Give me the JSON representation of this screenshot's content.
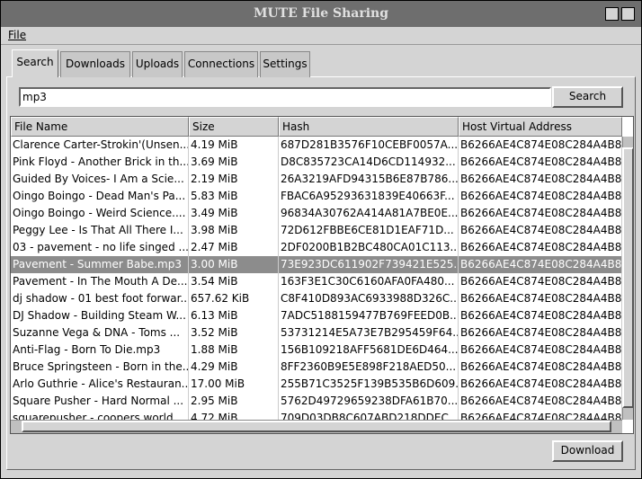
{
  "window": {
    "title": "MUTE File Sharing"
  },
  "menu": [
    "File"
  ],
  "tabs": [
    "Search",
    "Downloads",
    "Uploads",
    "Connections",
    "Settings"
  ],
  "active_tab": 0,
  "search": {
    "query": "mp3",
    "button": "Search"
  },
  "table": {
    "columns": [
      "File Name",
      "Size",
      "Hash",
      "Host Virtual Address"
    ],
    "rows": [
      [
        "Clarence Carter-Strokin'(Unsen...",
        "4.19 MiB",
        "687D281B3576F10CEBF0057A...",
        "B6266AE4C874E08C284A4B8"
      ],
      [
        "Pink Floyd - Another Brick in th...",
        "3.69 MiB",
        "D8C835723CA14D6CD114932...",
        "B6266AE4C874E08C284A4B8"
      ],
      [
        "Guided By Voices- I Am a Scie...",
        "2.19 MiB",
        "26A3219AFD94315B6E87B786...",
        "B6266AE4C874E08C284A4B8"
      ],
      [
        "Oingo Boingo - Dead Man's Pa...",
        "5.83 MiB",
        "FBAC6A95293631839E40663F...",
        "B6266AE4C874E08C284A4B8"
      ],
      [
        "Oingo Boingo - Weird Science....",
        "3.49 MiB",
        "96834A30762A414A81A7BE0E...",
        "B6266AE4C874E08C284A4B8"
      ],
      [
        "Peggy Lee - Is That All There I...",
        "3.98 MiB",
        "72D612FBBE6CE81D1EAF71D...",
        "B6266AE4C874E08C284A4B8"
      ],
      [
        "03 - pavement - no life singed ...",
        "2.47 MiB",
        "2DF0200B1B2BC480CA01C113...",
        "B6266AE4C874E08C284A4B8"
      ],
      [
        "Pavement - Summer Babe.mp3",
        "3.00 MiB",
        "73E923DC611902F739421E525...",
        "B6266AE4C874E08C284A4B8"
      ],
      [
        "Pavement - In The Mouth A De...",
        "3.54 MiB",
        "163F3E1C30C6160AFA0FA480...",
        "B6266AE4C874E08C284A4B8"
      ],
      [
        "dj shadow - 01 best foot forwar...",
        "657.62 KiB",
        "C8F410D893AC6933988D326C...",
        "B6266AE4C874E08C284A4B8"
      ],
      [
        "DJ Shadow - Building Steam W...",
        "6.13 MiB",
        "7ADC5188159477B769FEED0B...",
        "B6266AE4C874E08C284A4B8"
      ],
      [
        "Suzanne Vega & DNA - Toms ...",
        "3.52 MiB",
        "53731214E5A73E7B295459F64...",
        "B6266AE4C874E08C284A4B8"
      ],
      [
        "Anti-Flag - Born To Die.mp3",
        "1.88 MiB",
        "156B109218AFF5681DE6D464...",
        "B6266AE4C874E08C284A4B8"
      ],
      [
        "Bruce Springsteen - Born in the...",
        "4.29 MiB",
        "8FF2360B9E5E898F218AED50...",
        "B6266AE4C874E08C284A4B8"
      ],
      [
        "Arlo Guthrie - Alice's Restauran...",
        "17.00 MiB",
        "255B71C3525F139B535B6D609...",
        "B6266AE4C874E08C284A4B8"
      ],
      [
        "Square Pusher - Hard Normal ...",
        "2.95 MiB",
        "5762D49729659238DFA61B70...",
        "B6266AE4C874E08C284A4B8"
      ],
      [
        "squarepusher - coopers world...",
        "4.72 MiB",
        "709D03DB8C607ABD218DDEC...",
        "B6266AE4C874E08C284A4B8"
      ]
    ],
    "selected_row": 7
  },
  "download_button": "Download"
}
